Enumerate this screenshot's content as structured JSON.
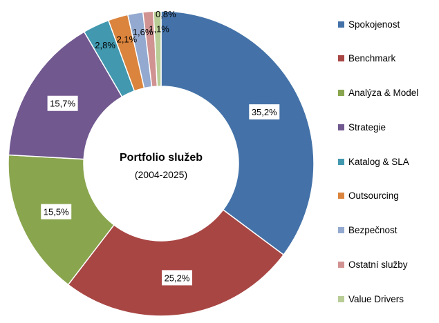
{
  "chart_data": {
    "type": "pie",
    "variant": "donut",
    "center_title": "Portfolio služeb",
    "center_subtitle": "(2004-2025)",
    "slices": [
      {
        "name": "Spokojenost",
        "value": 35.2,
        "label": "35,2%",
        "color": "#4472A8"
      },
      {
        "name": "Benchmark",
        "value": 25.2,
        "label": "25,2%",
        "color": "#A84644"
      },
      {
        "name": "Analýza & Model",
        "value": 15.5,
        "label": "15,5%",
        "color": "#89A54E"
      },
      {
        "name": "Strategie",
        "value": 15.7,
        "label": "15,7%",
        "color": "#71588F"
      },
      {
        "name": "Katalog & SLA",
        "value": 2.8,
        "label": "2,8%",
        "color": "#4198AF"
      },
      {
        "name": "Outsourcing",
        "value": 2.1,
        "label": "2,1%",
        "color": "#DB843D"
      },
      {
        "name": "Bezpečnost",
        "value": 1.6,
        "label": "1,6%",
        "color": "#93A9CF"
      },
      {
        "name": "Ostatní služby",
        "value": 1.1,
        "label": "1,1%",
        "color": "#D19392"
      },
      {
        "name": "Value Drivers",
        "value": 0.8,
        "label": "0,8%",
        "color": "#B9CD96"
      }
    ],
    "legend_position": "right"
  }
}
